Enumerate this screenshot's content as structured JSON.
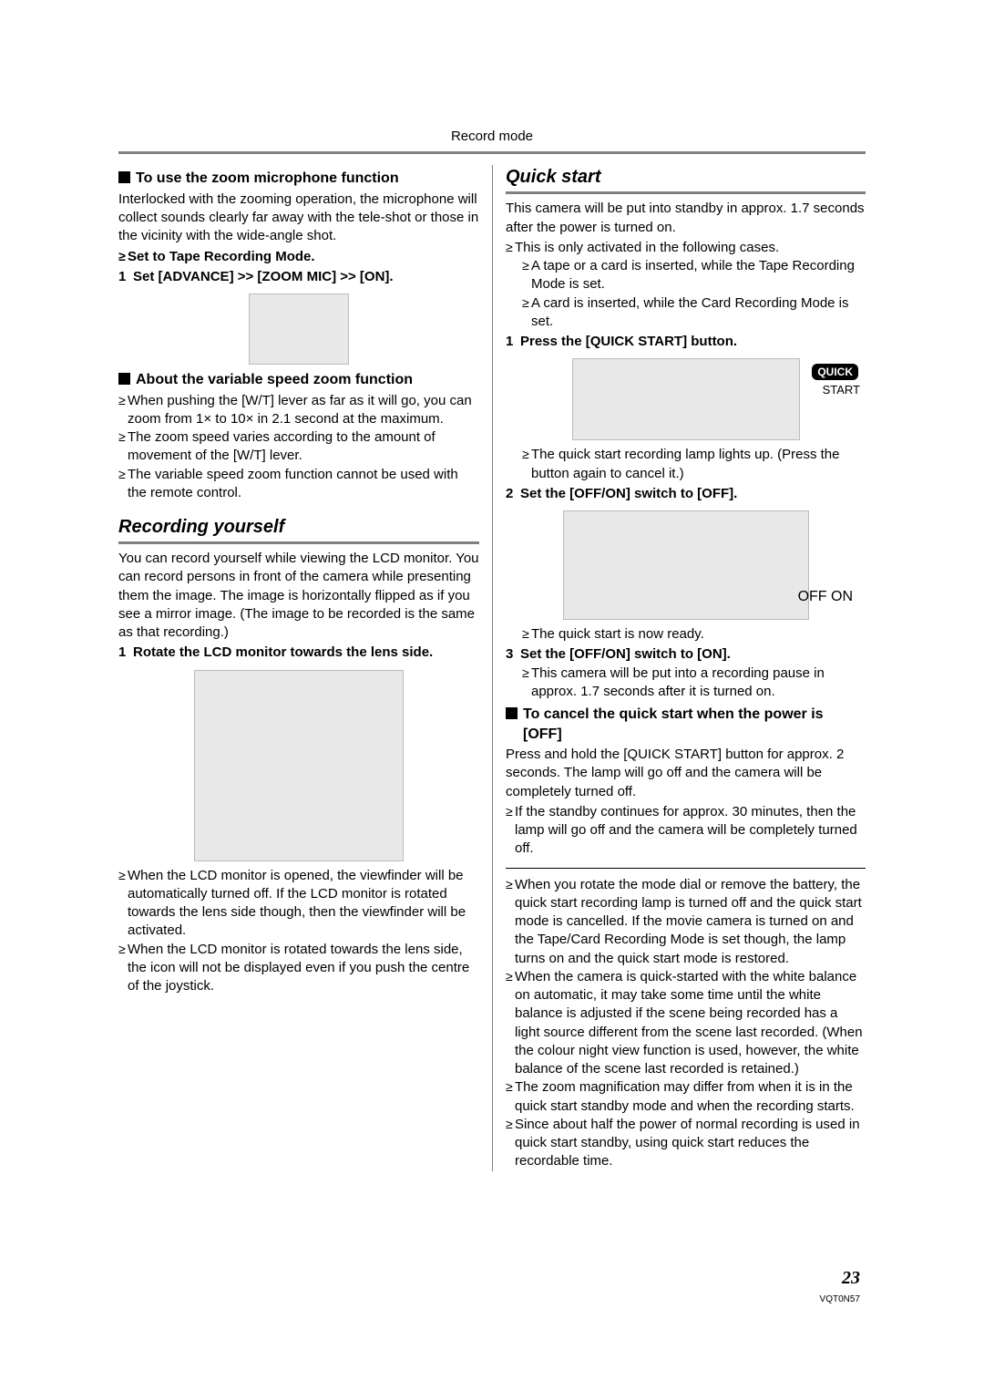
{
  "header": {
    "title": "Record mode"
  },
  "left": {
    "zoom_mic": {
      "heading": "To use the zoom microphone function",
      "intro": "Interlocked with the zooming operation, the microphone will collect sounds clearly far away with the tele-shot or those in the vicinity with the wide-angle shot.",
      "bullet1": "Set to Tape Recording Mode.",
      "step1_num": "1",
      "step1": "Set [ADVANCE] >> [ZOOM MIC] >> [ON]."
    },
    "var_zoom": {
      "heading": "About the variable speed zoom function",
      "b1": "When pushing the [W/T] lever as far as it will go, you can zoom from 1× to 10× in 2.1 second at the maximum.",
      "b2": "The zoom speed varies according to the amount of movement of the [W/T] lever.",
      "b3": "The variable speed zoom function cannot be used with the remote control."
    },
    "rec_self": {
      "title": "Recording yourself",
      "intro": "You can record yourself while viewing the LCD monitor. You can record persons in front of the camera while presenting them the image. The image is horizontally flipped as if you see a mirror image. (The image to be recorded is the same as that recording.)",
      "step1_num": "1",
      "step1": "Rotate the LCD monitor towards the lens side.",
      "b1": "When the LCD monitor is opened, the viewfinder will be automatically turned off. If the LCD monitor is rotated towards the lens side though, then the viewfinder will be activated.",
      "b2": "When the LCD monitor is rotated towards the lens side, the icon will not be displayed even if you push the centre of the joystick."
    }
  },
  "right": {
    "quick": {
      "title": "Quick start",
      "intro": "This camera will be put into standby in approx. 1.7 seconds after the power is turned on.",
      "b1": "This is only activated in the following cases.",
      "b1a": "A tape or a card is inserted, while the Tape Recording Mode is set.",
      "b1b": "A card is inserted, while the Card Recording Mode is set.",
      "s1_num": "1",
      "s1": "Press the [QUICK START] button.",
      "badge": "QUICK",
      "badge_sub": "START",
      "s1_b": "The quick start recording lamp lights up. (Press the button again to cancel it.)",
      "s2_num": "2",
      "s2": "Set the [OFF/ON] switch to [OFF].",
      "offon": "OFF     ON",
      "s2_b": "The quick start is now ready.",
      "s3_num": "3",
      "s3": "Set the [OFF/ON] switch to [ON].",
      "s3_b": "This camera will be put into a recording pause in approx. 1.7 seconds after it is turned on."
    },
    "cancel": {
      "heading": "To cancel the quick start when the power is [OFF]",
      "intro": "Press and hold the [QUICK START] button for approx. 2 seconds. The lamp will go off and the camera will be completely turned off.",
      "b1": "If the standby continues for approx. 30 minutes, then the lamp will go off and the camera will be completely turned off.",
      "b2": "When you rotate the mode dial or remove the battery, the quick start recording lamp is turned off and the quick start mode is cancelled. If the movie camera is turned on and the Tape/Card Recording Mode is set though, the lamp turns on and the quick start mode is restored.",
      "b3": "When the camera is quick-started with the white balance on automatic, it may take some time until the white balance is adjusted if the scene being recorded has a light source different from the scene last recorded. (When the colour night view function is used, however, the white balance of the scene last recorded is retained.)",
      "b4": "The zoom magnification may differ from when it is in the quick start standby mode and when the recording starts.",
      "b5": "Since about half the power of normal recording is used in quick start standby, using quick start reduces the recordable time."
    }
  },
  "footer": {
    "page": "23",
    "code": "VQT0N57"
  }
}
